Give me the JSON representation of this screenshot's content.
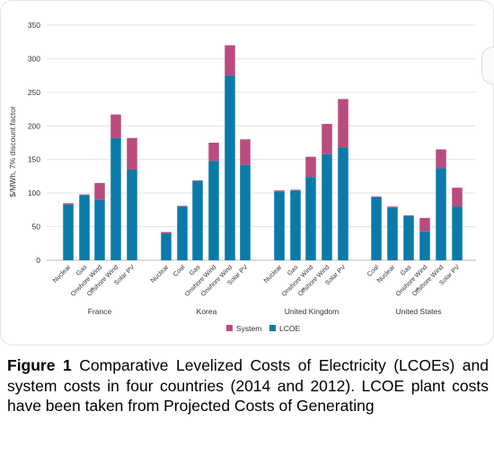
{
  "chart_data": {
    "type": "bar",
    "stacked": true,
    "ylabel": "$/MWh, 7% discount factor",
    "ylim": [
      0,
      350
    ],
    "yticks": [
      0,
      50,
      100,
      150,
      200,
      250,
      300,
      350
    ],
    "grid": true,
    "legend_position": "bottom",
    "series": [
      {
        "name": "LCOE",
        "color": "#0a7aa8"
      },
      {
        "name": "System",
        "color": "#b94b7f"
      }
    ],
    "groups": [
      {
        "label": "France",
        "bars": [
          {
            "category": "Nuclear",
            "lcoe": 83,
            "system": 2
          },
          {
            "category": "Gas",
            "lcoe": 97,
            "system": 1
          },
          {
            "category": "Onshore Wind",
            "lcoe": 90,
            "system": 25
          },
          {
            "category": "Offshore Wind",
            "lcoe": 182,
            "system": 35
          },
          {
            "category": "Solar PV",
            "lcoe": 135,
            "system": 47
          }
        ]
      },
      {
        "label": "Korea",
        "bars": [
          {
            "category": "Nuclear",
            "lcoe": 40,
            "system": 2
          },
          {
            "category": "Coal",
            "lcoe": 80,
            "system": 1
          },
          {
            "category": "Gas",
            "lcoe": 118,
            "system": 1
          },
          {
            "category": "Onshore Wind",
            "lcoe": 148,
            "system": 27
          },
          {
            "category": "Onshore Wind",
            "lcoe": 275,
            "system": 45
          },
          {
            "category": "Solar PV",
            "lcoe": 142,
            "system": 38
          }
        ]
      },
      {
        "label": "United Kingdom",
        "bars": [
          {
            "category": "Nuclear",
            "lcoe": 102,
            "system": 2
          },
          {
            "category": "Gas",
            "lcoe": 104,
            "system": 1
          },
          {
            "category": "Onshore Wind",
            "lcoe": 124,
            "system": 30
          },
          {
            "category": "Offshore Wind",
            "lcoe": 158,
            "system": 45
          },
          {
            "category": "Solar PV",
            "lcoe": 168,
            "system": 72
          }
        ]
      },
      {
        "label": "United States",
        "bars": [
          {
            "category": "Coal",
            "lcoe": 94,
            "system": 1
          },
          {
            "category": "Nuclear",
            "lcoe": 78,
            "system": 2
          },
          {
            "category": "Gas",
            "lcoe": 66,
            "system": 1
          },
          {
            "category": "Onshore Wind",
            "lcoe": 43,
            "system": 20
          },
          {
            "category": "Offshore Wind",
            "lcoe": 137,
            "system": 28
          },
          {
            "category": "Solar PV",
            "lcoe": 80,
            "system": 28
          }
        ]
      }
    ]
  },
  "caption": {
    "label": "Figure 1",
    "text": " Comparative Levelized Costs of Electricity (LCOEs) and system costs in four countries (2014 and 2012). LCOE plant costs have been taken from Projected Costs of Generating"
  }
}
